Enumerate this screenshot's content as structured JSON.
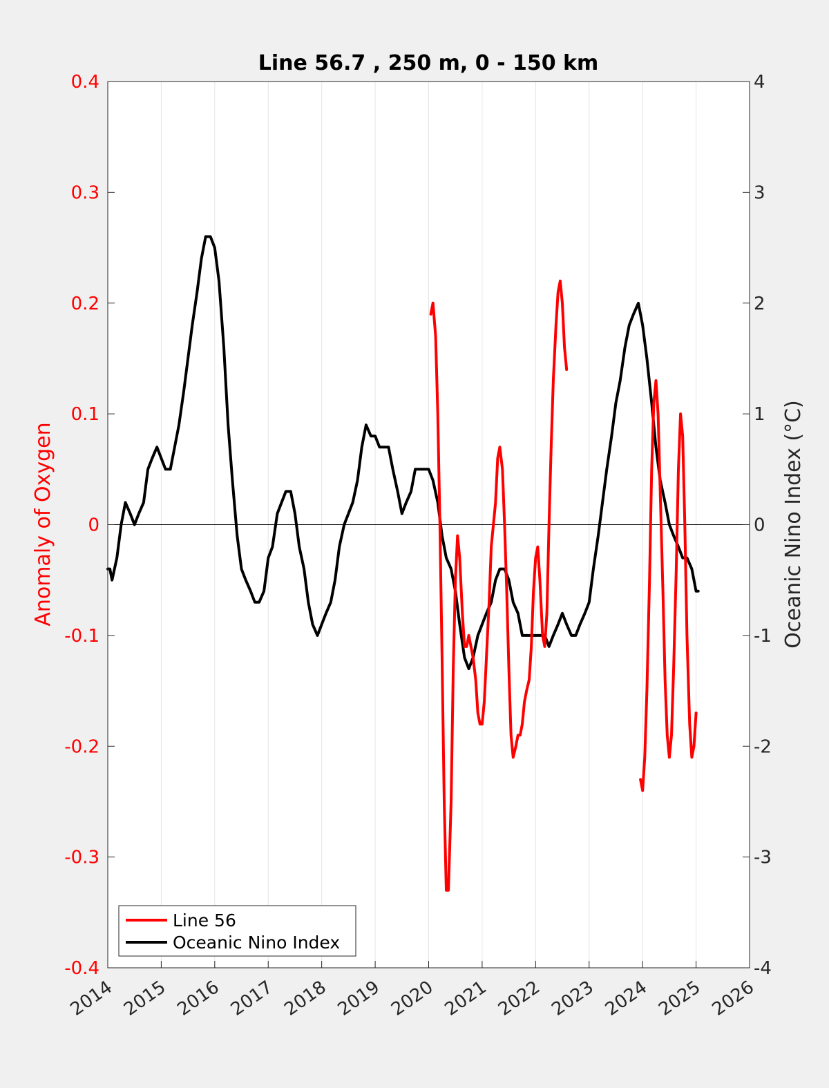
{
  "chart_data": {
    "type": "line",
    "title": "Line 56.7 , 250 m, 0 - 150 km",
    "xlabel": "",
    "ylabel_left": "Anomaly of Oxygen",
    "ylabel_right": "Oceanic Nino Index (°C)",
    "xlim": [
      2014,
      2026
    ],
    "ylim_left": [
      -0.4,
      0.4
    ],
    "ylim_right": [
      -4,
      4
    ],
    "x_ticks": [
      "2014",
      "2015",
      "2016",
      "2017",
      "2018",
      "2019",
      "2020",
      "2021",
      "2022",
      "2023",
      "2024",
      "2025",
      "2026"
    ],
    "y_left_ticks": [
      "0.4",
      "0.3",
      "0.2",
      "0.1",
      "0",
      "-0.1",
      "-0.2",
      "-0.3",
      "-0.4"
    ],
    "y_right_ticks": [
      "4",
      "3",
      "2",
      "1",
      "0",
      "-1",
      "-2",
      "-3",
      "-4"
    ],
    "grid": "vertical",
    "zero_line": true,
    "legend_position": "bottom-left",
    "colors": {
      "line56": "#ff0000",
      "oni": "#000000",
      "left_axis": "#ff0000",
      "right_axis": "#262626"
    },
    "series": [
      {
        "name": "Line 56",
        "axis": "left",
        "segments": [
          [
            [
              2020.04,
              0.19
            ],
            [
              2020.08,
              0.2
            ],
            [
              2020.13,
              0.17
            ],
            [
              2020.17,
              0.1
            ],
            [
              2020.21,
              0.0
            ],
            [
              2020.25,
              -0.12
            ],
            [
              2020.29,
              -0.25
            ],
            [
              2020.33,
              -0.33
            ],
            [
              2020.37,
              -0.33
            ],
            [
              2020.42,
              -0.25
            ],
            [
              2020.46,
              -0.13
            ],
            [
              2020.5,
              -0.05
            ],
            [
              2020.54,
              -0.01
            ],
            [
              2020.58,
              -0.03
            ],
            [
              2020.63,
              -0.08
            ],
            [
              2020.67,
              -0.11
            ],
            [
              2020.71,
              -0.11
            ],
            [
              2020.75,
              -0.1
            ],
            [
              2020.79,
              -0.11
            ],
            [
              2020.83,
              -0.12
            ],
            [
              2020.88,
              -0.14
            ],
            [
              2020.92,
              -0.17
            ],
            [
              2020.96,
              -0.18
            ],
            [
              2021.0,
              -0.18
            ],
            [
              2021.04,
              -0.16
            ],
            [
              2021.08,
              -0.12
            ],
            [
              2021.13,
              -0.07
            ],
            [
              2021.17,
              -0.02
            ],
            [
              2021.21,
              0.0
            ],
            [
              2021.25,
              0.02
            ],
            [
              2021.29,
              0.06
            ],
            [
              2021.33,
              0.07
            ],
            [
              2021.38,
              0.05
            ],
            [
              2021.42,
              0.0
            ],
            [
              2021.46,
              -0.06
            ],
            [
              2021.5,
              -0.13
            ],
            [
              2021.54,
              -0.19
            ],
            [
              2021.58,
              -0.21
            ],
            [
              2021.63,
              -0.2
            ],
            [
              2021.67,
              -0.19
            ],
            [
              2021.71,
              -0.19
            ],
            [
              2021.75,
              -0.18
            ],
            [
              2021.79,
              -0.16
            ],
            [
              2021.83,
              -0.15
            ],
            [
              2021.88,
              -0.14
            ],
            [
              2021.92,
              -0.11
            ],
            [
              2021.96,
              -0.06
            ],
            [
              2022.0,
              -0.03
            ],
            [
              2022.04,
              -0.02
            ],
            [
              2022.08,
              -0.05
            ],
            [
              2022.13,
              -0.1
            ],
            [
              2022.17,
              -0.11
            ],
            [
              2022.21,
              -0.08
            ],
            [
              2022.25,
              0.0
            ],
            [
              2022.29,
              0.07
            ],
            [
              2022.33,
              0.13
            ],
            [
              2022.38,
              0.18
            ],
            [
              2022.42,
              0.21
            ],
            [
              2022.46,
              0.22
            ],
            [
              2022.5,
              0.2
            ],
            [
              2022.54,
              0.16
            ],
            [
              2022.58,
              0.14
            ]
          ],
          [
            [
              2023.96,
              -0.23
            ],
            [
              2024.0,
              -0.24
            ],
            [
              2024.04,
              -0.21
            ],
            [
              2024.08,
              -0.15
            ],
            [
              2024.13,
              -0.05
            ],
            [
              2024.17,
              0.05
            ],
            [
              2024.21,
              0.11
            ],
            [
              2024.25,
              0.13
            ],
            [
              2024.29,
              0.1
            ],
            [
              2024.33,
              0.03
            ],
            [
              2024.38,
              -0.06
            ],
            [
              2024.42,
              -0.14
            ],
            [
              2024.46,
              -0.19
            ],
            [
              2024.5,
              -0.21
            ],
            [
              2024.54,
              -0.19
            ],
            [
              2024.58,
              -0.13
            ],
            [
              2024.63,
              -0.04
            ],
            [
              2024.67,
              0.05
            ],
            [
              2024.71,
              0.1
            ],
            [
              2024.75,
              0.08
            ],
            [
              2024.79,
              0.0
            ],
            [
              2024.83,
              -0.1
            ],
            [
              2024.88,
              -0.18
            ],
            [
              2024.92,
              -0.21
            ],
            [
              2024.96,
              -0.2
            ],
            [
              2025.0,
              -0.17
            ]
          ]
        ]
      },
      {
        "name": "Oceanic Nino Index",
        "axis": "right",
        "points": [
          [
            2014.0,
            -0.4
          ],
          [
            2014.04,
            -0.4
          ],
          [
            2014.08,
            -0.5
          ],
          [
            2014.17,
            -0.3
          ],
          [
            2014.25,
            0.0
          ],
          [
            2014.33,
            0.2
          ],
          [
            2014.42,
            0.1
          ],
          [
            2014.5,
            0.0
          ],
          [
            2014.58,
            0.1
          ],
          [
            2014.67,
            0.2
          ],
          [
            2014.75,
            0.5
          ],
          [
            2014.83,
            0.6
          ],
          [
            2014.92,
            0.7
          ],
          [
            2015.0,
            0.6
          ],
          [
            2015.08,
            0.5
          ],
          [
            2015.17,
            0.5
          ],
          [
            2015.25,
            0.7
          ],
          [
            2015.33,
            0.9
          ],
          [
            2015.42,
            1.2
          ],
          [
            2015.5,
            1.5
          ],
          [
            2015.58,
            1.8
          ],
          [
            2015.67,
            2.1
          ],
          [
            2015.75,
            2.4
          ],
          [
            2015.83,
            2.6
          ],
          [
            2015.92,
            2.6
          ],
          [
            2016.0,
            2.5
          ],
          [
            2016.08,
            2.2
          ],
          [
            2016.17,
            1.6
          ],
          [
            2016.25,
            0.9
          ],
          [
            2016.33,
            0.4
          ],
          [
            2016.42,
            -0.1
          ],
          [
            2016.5,
            -0.4
          ],
          [
            2016.58,
            -0.5
          ],
          [
            2016.67,
            -0.6
          ],
          [
            2016.75,
            -0.7
          ],
          [
            2016.83,
            -0.7
          ],
          [
            2016.92,
            -0.6
          ],
          [
            2017.0,
            -0.3
          ],
          [
            2017.08,
            -0.2
          ],
          [
            2017.17,
            0.1
          ],
          [
            2017.25,
            0.2
          ],
          [
            2017.33,
            0.3
          ],
          [
            2017.42,
            0.3
          ],
          [
            2017.5,
            0.1
          ],
          [
            2017.58,
            -0.2
          ],
          [
            2017.67,
            -0.4
          ],
          [
            2017.75,
            -0.7
          ],
          [
            2017.83,
            -0.9
          ],
          [
            2017.92,
            -1.0
          ],
          [
            2018.0,
            -0.9
          ],
          [
            2018.08,
            -0.8
          ],
          [
            2018.17,
            -0.7
          ],
          [
            2018.25,
            -0.5
          ],
          [
            2018.33,
            -0.2
          ],
          [
            2018.42,
            0.0
          ],
          [
            2018.5,
            0.1
          ],
          [
            2018.58,
            0.2
          ],
          [
            2018.67,
            0.4
          ],
          [
            2018.75,
            0.7
          ],
          [
            2018.83,
            0.9
          ],
          [
            2018.92,
            0.8
          ],
          [
            2019.0,
            0.8
          ],
          [
            2019.08,
            0.7
          ],
          [
            2019.17,
            0.7
          ],
          [
            2019.25,
            0.7
          ],
          [
            2019.33,
            0.5
          ],
          [
            2019.42,
            0.3
          ],
          [
            2019.5,
            0.1
          ],
          [
            2019.58,
            0.2
          ],
          [
            2019.67,
            0.3
          ],
          [
            2019.75,
            0.5
          ],
          [
            2019.83,
            0.5
          ],
          [
            2019.92,
            0.5
          ],
          [
            2020.0,
            0.5
          ],
          [
            2020.08,
            0.4
          ],
          [
            2020.17,
            0.2
          ],
          [
            2020.25,
            -0.1
          ],
          [
            2020.33,
            -0.3
          ],
          [
            2020.42,
            -0.4
          ],
          [
            2020.5,
            -0.6
          ],
          [
            2020.58,
            -0.9
          ],
          [
            2020.67,
            -1.2
          ],
          [
            2020.75,
            -1.3
          ],
          [
            2020.83,
            -1.2
          ],
          [
            2020.92,
            -1.0
          ],
          [
            2021.0,
            -0.9
          ],
          [
            2021.08,
            -0.8
          ],
          [
            2021.17,
            -0.7
          ],
          [
            2021.25,
            -0.5
          ],
          [
            2021.33,
            -0.4
          ],
          [
            2021.42,
            -0.4
          ],
          [
            2021.5,
            -0.5
          ],
          [
            2021.58,
            -0.7
          ],
          [
            2021.67,
            -0.8
          ],
          [
            2021.75,
            -1.0
          ],
          [
            2021.83,
            -1.0
          ],
          [
            2021.92,
            -1.0
          ],
          [
            2022.0,
            -1.0
          ],
          [
            2022.08,
            -1.0
          ],
          [
            2022.17,
            -1.0
          ],
          [
            2022.25,
            -1.1
          ],
          [
            2022.33,
            -1.0
          ],
          [
            2022.42,
            -0.9
          ],
          [
            2022.5,
            -0.8
          ],
          [
            2022.58,
            -0.9
          ],
          [
            2022.67,
            -1.0
          ],
          [
            2022.75,
            -1.0
          ],
          [
            2022.83,
            -0.9
          ],
          [
            2022.92,
            -0.8
          ],
          [
            2023.0,
            -0.7
          ],
          [
            2023.08,
            -0.4
          ],
          [
            2023.17,
            -0.1
          ],
          [
            2023.25,
            0.2
          ],
          [
            2023.33,
            0.5
          ],
          [
            2023.42,
            0.8
          ],
          [
            2023.5,
            1.1
          ],
          [
            2023.58,
            1.3
          ],
          [
            2023.67,
            1.6
          ],
          [
            2023.75,
            1.8
          ],
          [
            2023.83,
            1.9
          ],
          [
            2023.92,
            2.0
          ],
          [
            2024.0,
            1.8
          ],
          [
            2024.08,
            1.5
          ],
          [
            2024.17,
            1.1
          ],
          [
            2024.25,
            0.7
          ],
          [
            2024.33,
            0.4
          ],
          [
            2024.42,
            0.2
          ],
          [
            2024.5,
            0.0
          ],
          [
            2024.58,
            -0.1
          ],
          [
            2024.67,
            -0.2
          ],
          [
            2024.75,
            -0.3
          ],
          [
            2024.83,
            -0.3
          ],
          [
            2024.92,
            -0.4
          ],
          [
            2025.0,
            -0.6
          ],
          [
            2025.04,
            -0.6
          ]
        ]
      }
    ]
  }
}
